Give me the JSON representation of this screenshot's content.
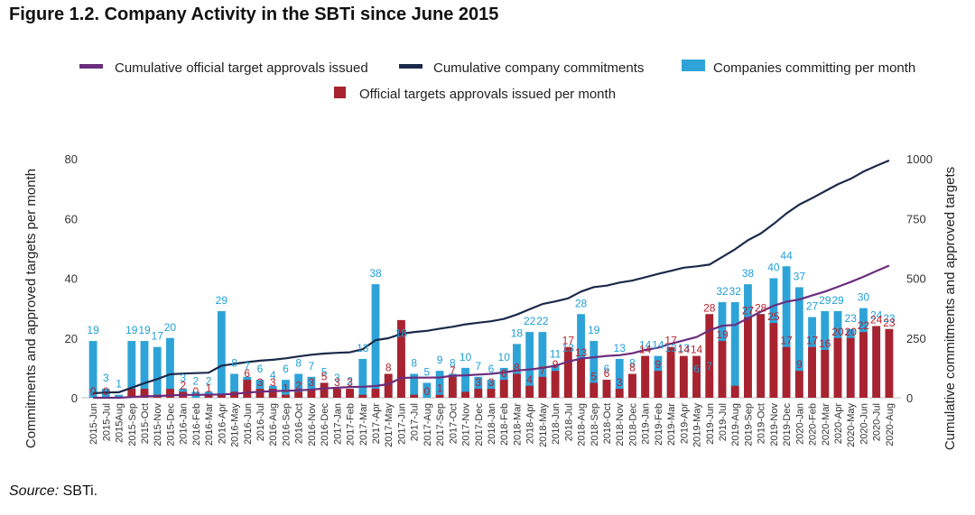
{
  "title": "Figure 1.2. Company Activity in the SBTi since June 2015",
  "source_label": "Source:",
  "source_text": "SBTi.",
  "colors": {
    "approvals_line": "#6b2d7d",
    "commitments_line": "#1b2a4a",
    "commit_bar": "#2ea3d8",
    "approve_bar": "#a8232f",
    "commit_label": "#1f9fd6",
    "approve_label": "#b5212b"
  },
  "chart_data": {
    "type": "bar",
    "title": "Figure 1.2. Company Activity in the SBTi since June 2015",
    "categories": [
      "2015-Jun",
      "2015-Jul",
      "2015Aug",
      "2015-Sep",
      "2015-Oct",
      "2015-Nov",
      "2015-Dec",
      "2016-Jan",
      "2016-Feb",
      "2016-Mar",
      "2016-Apr",
      "2016-May",
      "2016-Jun",
      "2016-Jul",
      "2016-Aug",
      "2016-Sep",
      "2016-Oct",
      "2016-Nov",
      "2016-Dec",
      "2017-Jan",
      "2017-Feb",
      "2017-Mar",
      "2017-Apr",
      "2017-May",
      "2017-Jun",
      "2017-Jul",
      "2017-Aug",
      "2017-Sep",
      "2017-Oct",
      "2017-Nov",
      "2017-Dec",
      "2018-Jan",
      "2018-Feb",
      "2018-Mar",
      "2018-Apr",
      "2018-May",
      "2018-Jun",
      "2018-Jul",
      "2018-Aug",
      "2018-Sep",
      "2018-Oct",
      "2018-Nov",
      "2018-Dec",
      "2019-Jan",
      "2019-Feb",
      "2019-Mar",
      "2019-Apr",
      "2019-May",
      "2019-Jun",
      "2019-Jul",
      "2019-Aug",
      "2019-Sep",
      "2019-Oct",
      "2019-Nov",
      "2019-Dec",
      "2020-Jan",
      "2020-Feb",
      "2020-Mar",
      "2020-Apr",
      "2020-May",
      "2020-Jun",
      "2020-Jul",
      "2020-Aug"
    ],
    "series": [
      {
        "name": "Companies committing per month",
        "axis": "left",
        "kind": "bar",
        "values": [
          19,
          3,
          1,
          19,
          19,
          17,
          20,
          3,
          2,
          2,
          29,
          8,
          7,
          6,
          4,
          6,
          8,
          7,
          5,
          3,
          2,
          13,
          38,
          8,
          18,
          8,
          5,
          9,
          8,
          10,
          7,
          6,
          10,
          18,
          22,
          22,
          11,
          13,
          28,
          19,
          6,
          13,
          8,
          14,
          14,
          13,
          13,
          6,
          7,
          32,
          32,
          38,
          28,
          40,
          44,
          37,
          27,
          29,
          29,
          23,
          30,
          24,
          23
        ]
      },
      {
        "name": "Official targets approvals issued per month",
        "axis": "left",
        "kind": "bar",
        "values": [
          0,
          0,
          0,
          3,
          3,
          1,
          3,
          2,
          0,
          1,
          1,
          2,
          6,
          3,
          3,
          1,
          2,
          3,
          5,
          3,
          3,
          1,
          3,
          8,
          26,
          1,
          0,
          1,
          7,
          2,
          3,
          3,
          6,
          8,
          4,
          7,
          9,
          17,
          13,
          5,
          6,
          3,
          8,
          14,
          9,
          17,
          14,
          14,
          28,
          19,
          4,
          27,
          28,
          25,
          17,
          9,
          17,
          16,
          20,
          20,
          22,
          24,
          23
        ]
      },
      {
        "name": "Cumulative official target approvals issued",
        "axis": "right",
        "kind": "line",
        "values": [
          0,
          0,
          0,
          3,
          6,
          7,
          10,
          12,
          12,
          13,
          14,
          16,
          22,
          25,
          28,
          29,
          31,
          34,
          39,
          42,
          45,
          46,
          49,
          57,
          83,
          84,
          84,
          85,
          92,
          94,
          97,
          100,
          106,
          114,
          118,
          125,
          134,
          151,
          164,
          169,
          175,
          178,
          186,
          200,
          209,
          226,
          240,
          254,
          282,
          301,
          305,
          332,
          360,
          385,
          402,
          411,
          428,
          444,
          464,
          484,
          506,
          530,
          553
        ]
      },
      {
        "name": "Cumulative company commitments",
        "axis": "right",
        "kind": "line",
        "values": [
          19,
          22,
          23,
          42,
          61,
          78,
          98,
          101,
          103,
          105,
          134,
          142,
          149,
          155,
          159,
          165,
          173,
          180,
          185,
          188,
          190,
          203,
          241,
          249,
          267,
          275,
          280,
          289,
          297,
          307,
          314,
          320,
          330,
          348,
          370,
          392,
          403,
          416,
          444,
          463,
          469,
          482,
          490,
          504,
          518,
          531,
          544,
          550,
          557,
          589,
          621,
          659,
          687,
          727,
          771,
          808,
          835,
          864,
          893,
          916,
          946,
          970,
          993
        ]
      }
    ],
    "approve_labels": [
      "0",
      "0",
      "",
      "",
      "",
      "",
      "",
      "2",
      "0",
      "1",
      "",
      "",
      "6",
      "3",
      "3",
      "1",
      "2",
      "3",
      "5",
      "3",
      "3",
      "",
      "",
      "8",
      "",
      "",
      "0",
      "1",
      "7",
      "",
      "3",
      "3",
      "6",
      "8",
      "4",
      "7",
      "9",
      "17",
      "13",
      "5",
      "6",
      "3",
      "8",
      "14",
      "9",
      "17",
      "14",
      "14",
      "28",
      "19",
      "",
      "27",
      "28",
      "25",
      "17",
      "9",
      "17",
      "16",
      "20",
      "20",
      "22",
      "24",
      "23"
    ],
    "commit_labels": [
      "19",
      "3",
      "1",
      "19",
      "19",
      "17",
      "20",
      "3",
      "2",
      "2",
      "29",
      "8",
      "7",
      "6",
      "4",
      "6",
      "8",
      "7",
      "5",
      "3",
      "2",
      "13",
      "38",
      "",
      "18",
      "8",
      "5",
      "9",
      "8",
      "10",
      "7",
      "6",
      "10",
      "18",
      "22",
      "22",
      "11",
      "13",
      "28",
      "19",
      "6",
      "13",
      "8",
      "14",
      "14",
      "13",
      "13",
      "6",
      "7",
      "32",
      "32",
      "38",
      "",
      "40",
      "44",
      "37",
      "27",
      "29",
      "29",
      "23",
      "30",
      "24",
      "23"
    ],
    "ylim": [
      0,
      80
    ],
    "y2lim": [
      0,
      1000
    ],
    "yticks": [
      "0",
      "20",
      "40",
      "60",
      "80"
    ],
    "y2ticks": [
      "0",
      "250",
      "500",
      "750",
      "1000"
    ],
    "ylabel": "Commitments and approved targets per month",
    "y2label": "Cumulative commitments and approved targets",
    "xlabel": "",
    "grid": false,
    "legend_position": "top"
  }
}
